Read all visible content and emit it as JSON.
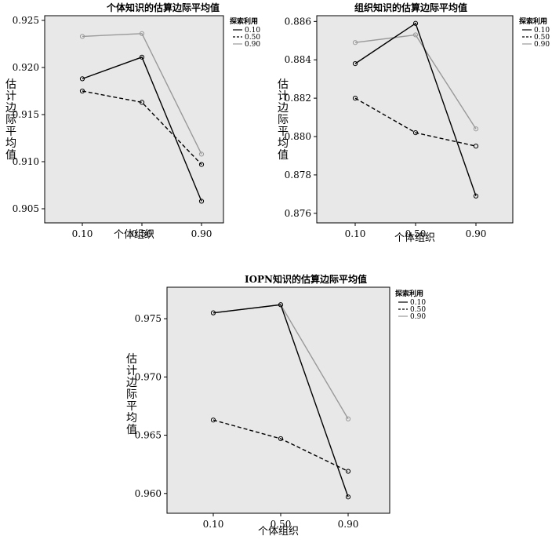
{
  "chart_data": [
    {
      "type": "line",
      "title": "个体知识的估算边际平均值",
      "xlabel": "个体组织",
      "ylabel": "估计边际平均值",
      "categories": [
        "0.10",
        "0.50",
        "0.90"
      ],
      "yticks": [
        "0.905",
        "0.910",
        "0.915",
        "0.920",
        "0.925"
      ],
      "ylim": [
        0.9035,
        0.9255
      ],
      "grid": false,
      "legend": {
        "title": "探索利用",
        "position": "top-right"
      },
      "series": [
        {
          "name": "0.10",
          "style": "solid",
          "color": "#000000",
          "values": [
            0.9188,
            0.9211,
            0.9058
          ]
        },
        {
          "name": "0.50",
          "style": "dashed",
          "color": "#000000",
          "values": [
            0.9175,
            0.9163,
            0.9097
          ]
        },
        {
          "name": "0.90",
          "style": "solid",
          "color": "#999999",
          "values": [
            0.9233,
            0.9236,
            0.9108
          ]
        }
      ]
    },
    {
      "type": "line",
      "title": "组织知识的估算边际平均值",
      "xlabel": "个体组织",
      "ylabel": "估计边际平均值",
      "categories": [
        "0.10",
        "0.50",
        "0.90"
      ],
      "yticks": [
        "0.876",
        "0.878",
        "0.880",
        "0.882",
        "0.884",
        "0.886"
      ],
      "ylim": [
        0.8755,
        0.8863
      ],
      "grid": false,
      "legend": {
        "title": "探索利用",
        "position": "top-right"
      },
      "series": [
        {
          "name": "0.10",
          "style": "solid",
          "color": "#000000",
          "values": [
            0.8838,
            0.8859,
            0.8769
          ]
        },
        {
          "name": "0.50",
          "style": "dashed",
          "color": "#000000",
          "values": [
            0.882,
            0.8802,
            0.8795
          ]
        },
        {
          "name": "0.90",
          "style": "solid",
          "color": "#999999",
          "values": [
            0.8849,
            0.8853,
            0.8804
          ]
        }
      ]
    },
    {
      "type": "line",
      "title": "IOPN知识的估算边际平均值",
      "xlabel": "个体组织",
      "ylabel": "估计边际平均值",
      "categories": [
        "0.10",
        "0.50",
        "0.90"
      ],
      "yticks": [
        "0.960",
        "0.965",
        "0.970",
        "0.975"
      ],
      "ylim": [
        0.9583,
        0.9777
      ],
      "grid": false,
      "legend": {
        "title": "探索利用",
        "position": "top-right"
      },
      "series": [
        {
          "name": "0.10",
          "style": "solid",
          "color": "#000000",
          "values": [
            0.9755,
            0.9762,
            0.9597
          ]
        },
        {
          "name": "0.50",
          "style": "dashed",
          "color": "#000000",
          "values": [
            0.9663,
            0.9647,
            0.9619
          ]
        },
        {
          "name": "0.90",
          "style": "solid",
          "color": "#999999",
          "values": [
            0.9755,
            0.9762,
            0.9664
          ]
        }
      ]
    }
  ]
}
